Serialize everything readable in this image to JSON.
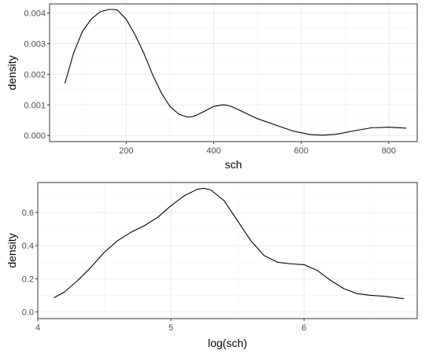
{
  "chart_data": [
    {
      "type": "line",
      "xlabel": "sch",
      "ylabel": "density",
      "xlim": [
        25,
        865
      ],
      "ylim": [
        -0.0002,
        0.0043
      ],
      "xticks": [
        200,
        400,
        600,
        800
      ],
      "xtick_labels": [
        "200",
        "400",
        "600",
        "800"
      ],
      "yticks": [
        0,
        0.001,
        0.002,
        0.003,
        0.004
      ],
      "ytick_labels": [
        "0.000",
        "0.001",
        "0.002",
        "0.003",
        "0.004"
      ],
      "grid": true,
      "series": [
        {
          "x": [
            60,
            80,
            100,
            120,
            140,
            160,
            170,
            180,
            200,
            220,
            240,
            260,
            280,
            300,
            320,
            340,
            350,
            360,
            380,
            400,
            420,
            430,
            440,
            460,
            480,
            500,
            540,
            580,
            620,
            650,
            680,
            720,
            760,
            800,
            840
          ],
          "y": [
            0.0017,
            0.0027,
            0.0034,
            0.0038,
            0.00404,
            0.00412,
            0.00412,
            0.0041,
            0.0038,
            0.0033,
            0.0027,
            0.002,
            0.0014,
            0.00095,
            0.0007,
            0.0006,
            0.00061,
            0.00066,
            0.0008,
            0.00095,
            0.001,
            0.00099,
            0.00095,
            0.00082,
            0.00068,
            0.00055,
            0.00035,
            0.00015,
            3e-05,
            1e-05,
            4e-05,
            0.00015,
            0.00025,
            0.00027,
            0.00024
          ]
        }
      ]
    },
    {
      "type": "line",
      "xlabel": "log(sch)",
      "ylabel": "density",
      "xlim": [
        4.0,
        6.85
      ],
      "ylim": [
        -0.04,
        0.78
      ],
      "xticks": [
        4,
        5,
        6
      ],
      "xtick_labels": [
        "4",
        "5",
        "6"
      ],
      "yticks": [
        0,
        0.2,
        0.4,
        0.6
      ],
      "ytick_labels": [
        "0.0",
        "0.2",
        "0.4",
        "0.6"
      ],
      "grid": true,
      "series": [
        {
          "x": [
            4.12,
            4.2,
            4.3,
            4.4,
            4.5,
            4.6,
            4.7,
            4.8,
            4.9,
            5.0,
            5.1,
            5.2,
            5.25,
            5.3,
            5.4,
            5.5,
            5.6,
            5.7,
            5.8,
            5.9,
            6.0,
            6.1,
            6.2,
            6.3,
            6.4,
            6.5,
            6.6,
            6.75
          ],
          "y": [
            0.085,
            0.12,
            0.19,
            0.27,
            0.36,
            0.43,
            0.48,
            0.52,
            0.57,
            0.64,
            0.7,
            0.74,
            0.745,
            0.735,
            0.67,
            0.55,
            0.43,
            0.34,
            0.3,
            0.29,
            0.285,
            0.25,
            0.19,
            0.14,
            0.11,
            0.1,
            0.095,
            0.08
          ]
        }
      ]
    }
  ]
}
